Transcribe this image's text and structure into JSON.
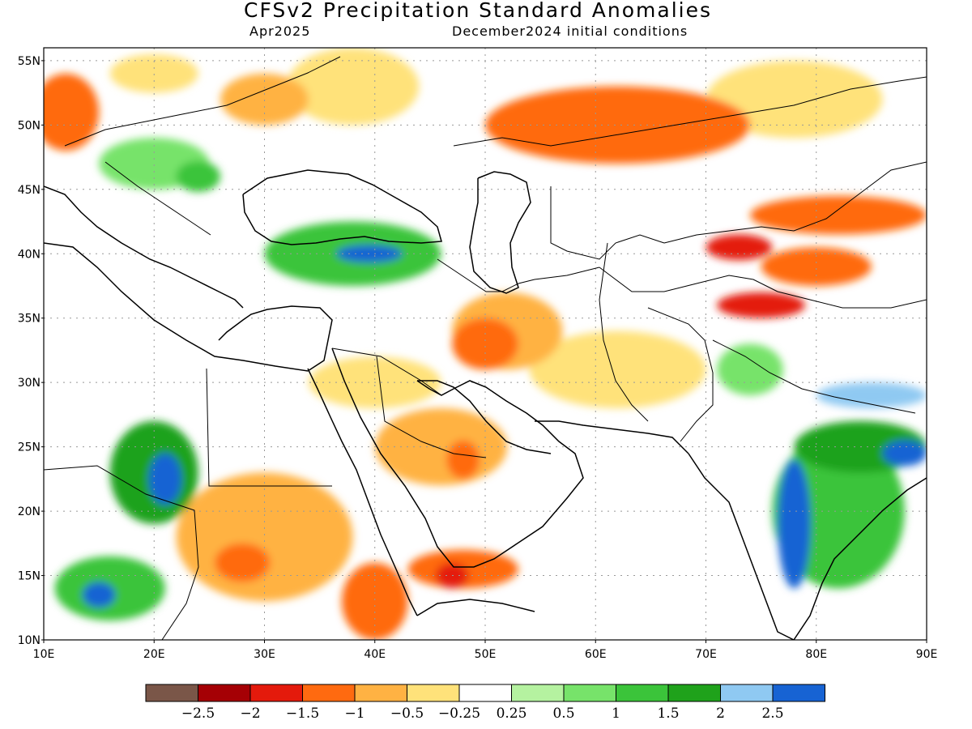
{
  "title": "CFSv2 Precipitation Standard Anomalies",
  "subtitle_left": "Apr2025",
  "subtitle_right": "December2024 initial conditions",
  "lat_labels": [
    "10N",
    "15N",
    "20N",
    "25N",
    "30N",
    "35N",
    "40N",
    "45N",
    "50N",
    "55N"
  ],
  "lon_labels": [
    "10E",
    "20E",
    "30E",
    "40E",
    "50E",
    "60E",
    "70E",
    "80E",
    "90E"
  ],
  "colorbar": {
    "colors": [
      "#7a5648",
      "#a50005",
      "#e41a0c",
      "#ff6a10",
      "#ffb243",
      "#ffe27a",
      "#ffffff",
      "#b5f2a0",
      "#77e36a",
      "#3bc43a",
      "#1fa21b",
      "#8fc9f2",
      "#1763d3"
    ],
    "labels": [
      "−2.5",
      "−2",
      "−1.5",
      "−1",
      "−0.5",
      "−0.25",
      "0.25",
      "0.5",
      "1",
      "1.5",
      "2",
      "2.5"
    ]
  },
  "map": {
    "lon_range": [
      10,
      90
    ],
    "lat_range": [
      10,
      56
    ],
    "grid": true,
    "anomaly_regions": [
      {
        "lon": 12,
        "lat": 51,
        "rx": 3,
        "ry": 3,
        "value": -1.5
      },
      {
        "lon": 20,
        "lat": 54,
        "rx": 4,
        "ry": 1.5,
        "value": -0.5
      },
      {
        "lon": 38,
        "lat": 53,
        "rx": 6,
        "ry": 3,
        "value": -0.5
      },
      {
        "lon": 30,
        "lat": 52,
        "rx": 4,
        "ry": 2,
        "value": -1
      },
      {
        "lon": 20,
        "lat": 47,
        "rx": 5,
        "ry": 2,
        "value": 0.5
      },
      {
        "lon": 24,
        "lat": 46,
        "rx": 2,
        "ry": 1.2,
        "value": 1
      },
      {
        "lon": 38,
        "lat": 40,
        "rx": 8,
        "ry": 2.5,
        "value": 1
      },
      {
        "lon": 39.5,
        "lat": 40,
        "rx": 3,
        "ry": 0.7,
        "value": 2.5
      },
      {
        "lon": 62,
        "lat": 50,
        "rx": 12,
        "ry": 3,
        "value": -1.5
      },
      {
        "lon": 78,
        "lat": 52,
        "rx": 8,
        "ry": 3,
        "value": -0.5
      },
      {
        "lon": 82,
        "lat": 43,
        "rx": 8,
        "ry": 1.5,
        "value": -1.5
      },
      {
        "lon": 73,
        "lat": 40.5,
        "rx": 3,
        "ry": 1,
        "value": -2
      },
      {
        "lon": 80,
        "lat": 39,
        "rx": 5,
        "ry": 1.5,
        "value": -1.5
      },
      {
        "lon": 75,
        "lat": 36,
        "rx": 4,
        "ry": 1,
        "value": -2
      },
      {
        "lon": 52,
        "lat": 34,
        "rx": 5,
        "ry": 3,
        "value": -1
      },
      {
        "lon": 50,
        "lat": 33,
        "rx": 3,
        "ry": 2,
        "value": -1.5
      },
      {
        "lon": 46,
        "lat": 25,
        "rx": 6,
        "ry": 3,
        "value": -1
      },
      {
        "lon": 48,
        "lat": 24,
        "rx": 1.5,
        "ry": 1.5,
        "value": -1.5
      },
      {
        "lon": 40,
        "lat": 30,
        "rx": 6,
        "ry": 2,
        "value": -0.5
      },
      {
        "lon": 30,
        "lat": 18,
        "rx": 8,
        "ry": 5,
        "value": -1
      },
      {
        "lon": 28,
        "lat": 16,
        "rx": 2.5,
        "ry": 1.5,
        "value": -1.5
      },
      {
        "lon": 48,
        "lat": 15.5,
        "rx": 5,
        "ry": 1.5,
        "value": -1.5
      },
      {
        "lon": 47,
        "lat": 15,
        "rx": 1.5,
        "ry": 1,
        "value": -2
      },
      {
        "lon": 40,
        "lat": 13,
        "rx": 3,
        "ry": 3,
        "value": -1.5
      },
      {
        "lon": 20,
        "lat": 23,
        "rx": 4,
        "ry": 4,
        "value": 1.5
      },
      {
        "lon": 21,
        "lat": 22.5,
        "rx": 1.5,
        "ry": 2,
        "value": 2.5
      },
      {
        "lon": 16,
        "lat": 14,
        "rx": 5,
        "ry": 2.5,
        "value": 1
      },
      {
        "lon": 15,
        "lat": 13.5,
        "rx": 1.5,
        "ry": 1,
        "value": 2.5
      },
      {
        "lon": 82,
        "lat": 20,
        "rx": 6,
        "ry": 6,
        "value": 1
      },
      {
        "lon": 78,
        "lat": 19,
        "rx": 1.5,
        "ry": 5,
        "value": 2.5
      },
      {
        "lon": 84,
        "lat": 25,
        "rx": 6,
        "ry": 2,
        "value": 1.5
      },
      {
        "lon": 88,
        "lat": 24.5,
        "rx": 2,
        "ry": 1,
        "value": 2.5
      },
      {
        "lon": 85,
        "lat": 29,
        "rx": 5,
        "ry": 1,
        "value": 2
      },
      {
        "lon": 74,
        "lat": 31,
        "rx": 3,
        "ry": 2,
        "value": 0.5
      },
      {
        "lon": 62,
        "lat": 31,
        "rx": 8,
        "ry": 3,
        "value": -0.5
      }
    ]
  }
}
